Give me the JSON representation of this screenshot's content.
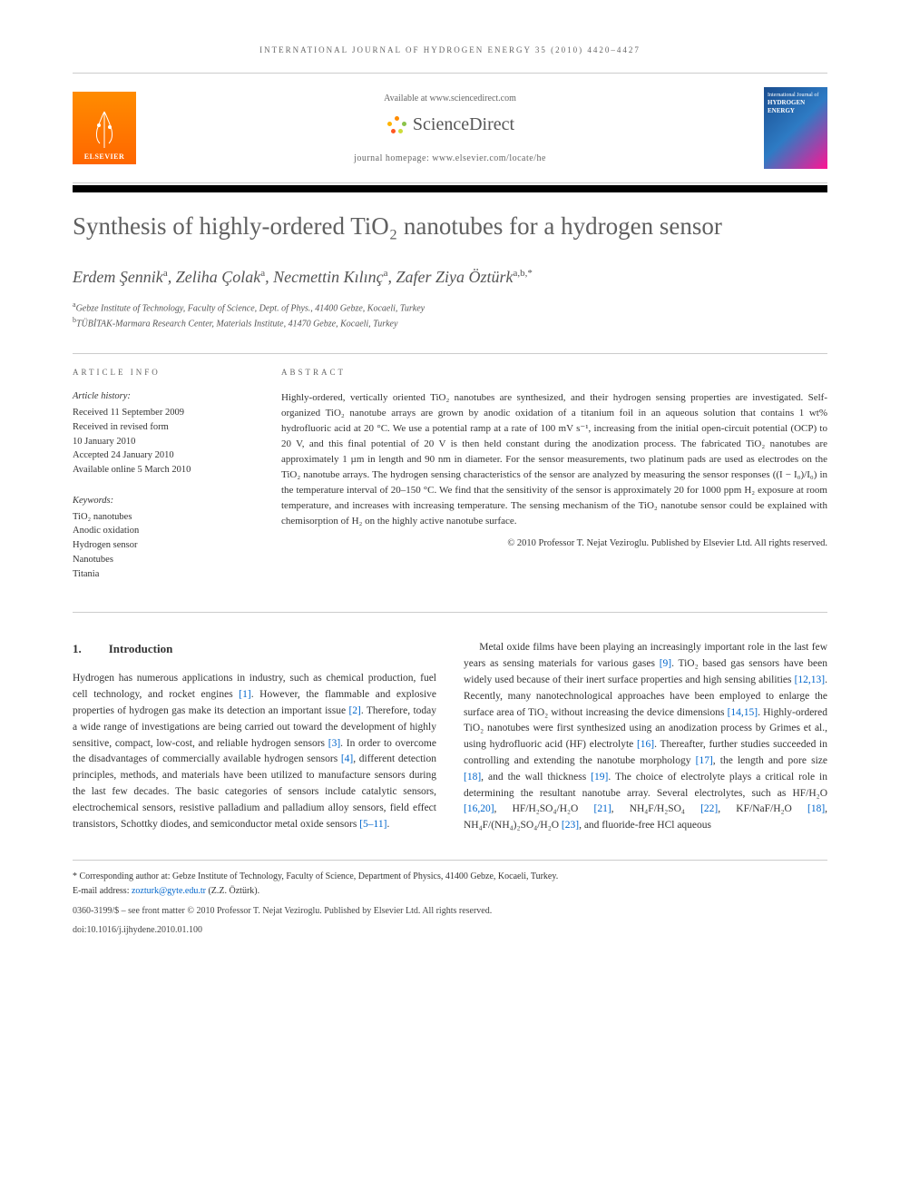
{
  "running_header": "INTERNATIONAL JOURNAL OF HYDROGEN ENERGY 35 (2010) 4420–4427",
  "header": {
    "available_at": "Available at www.sciencedirect.com",
    "sciencedirect": "ScienceDirect",
    "homepage_label": "journal homepage: ",
    "homepage_url": "www.elsevier.com/locate/he",
    "elsevier": "ELSEVIER",
    "cover_journal": "International Journal of",
    "cover_title": "HYDROGEN ENERGY"
  },
  "title": "Synthesis of highly-ordered TiO₂ nanotubes for a hydrogen sensor",
  "authors_html": "Erdem Şennik<sup>a</sup>, Zeliha Çolak<sup>a</sup>, Necmettin Kılınç<sup>a</sup>, Zafer Ziya Öztürk<sup>a,b,*</sup>",
  "affiliations": [
    {
      "sup": "a",
      "text": "Gebze Institute of Technology, Faculty of Science, Dept. of Phys., 41400 Gebze, Kocaeli, Turkey"
    },
    {
      "sup": "b",
      "text": "TÜBİTAK-Marmara Research Center, Materials Institute, 41470 Gebze, Kocaeli, Turkey"
    }
  ],
  "article_info": {
    "heading": "ARTICLE INFO",
    "history_label": "Article history:",
    "history": [
      "Received 11 September 2009",
      "Received in revised form",
      "10 January 2010",
      "Accepted 24 January 2010",
      "Available online 5 March 2010"
    ],
    "keywords_label": "Keywords:",
    "keywords": [
      "TiO₂ nanotubes",
      "Anodic oxidation",
      "Hydrogen sensor",
      "Nanotubes",
      "Titania"
    ]
  },
  "abstract": {
    "heading": "ABSTRACT",
    "text": "Highly-ordered, vertically oriented TiO₂ nanotubes are synthesized, and their hydrogen sensing properties are investigated. Self-organized TiO₂ nanotube arrays are grown by anodic oxidation of a titanium foil in an aqueous solution that contains 1 wt% hydrofluoric acid at 20 °C. We use a potential ramp at a rate of 100 mV s⁻¹, increasing from the initial open-circuit potential (OCP) to 20 V, and this final potential of 20 V is then held constant during the anodization process. The fabricated TiO₂ nanotubes are approximately 1 µm in length and 90 nm in diameter. For the sensor measurements, two platinum pads are used as electrodes on the TiO₂ nanotube arrays. The hydrogen sensing characteristics of the sensor are analyzed by measuring the sensor responses ((I − I₀)/I₀) in the temperature interval of 20–150 °C. We find that the sensitivity of the sensor is approximately 20 for 1000 ppm H₂ exposure at room temperature, and increases with increasing temperature. The sensing mechanism of the TiO₂ nanotube sensor could be explained with chemisorption of H₂ on the highly active nanotube surface.",
    "copyright": "© 2010 Professor T. Nejat Veziroglu. Published by Elsevier Ltd. All rights reserved."
  },
  "body": {
    "section_num": "1.",
    "section_title": "Introduction",
    "left_col": "Hydrogen has numerous applications in industry, such as chemical production, fuel cell technology, and rocket engines <span class='ref-link'>[1]</span>. However, the flammable and explosive properties of hydrogen gas make its detection an important issue <span class='ref-link'>[2]</span>. Therefore, today a wide range of investigations are being carried out toward the development of highly sensitive, compact, low-cost, and reliable hydrogen sensors <span class='ref-link'>[3]</span>. In order to overcome the disadvantages of commercially available hydrogen sensors <span class='ref-link'>[4]</span>, different detection principles, methods, and materials have been utilized to manufacture sensors during the last few decades. The basic categories of sensors include catalytic sensors, electrochemical sensors, resistive palladium and palladium alloy sensors, field effect transistors, Schottky diodes, and semiconductor metal oxide sensors <span class='ref-link'>[5–11]</span>.",
    "right_col": "Metal oxide films have been playing an increasingly important role in the last few years as sensing materials for various gases <span class='ref-link'>[9]</span>. TiO₂ based gas sensors have been widely used because of their inert surface properties and high sensing abilities <span class='ref-link'>[12,13]</span>. Recently, many nanotechnological approaches have been employed to enlarge the surface area of TiO₂ without increasing the device dimensions <span class='ref-link'>[14,15]</span>. Highly-ordered TiO₂ nanotubes were first synthesized using an anodization process by Grimes et al., using hydrofluoric acid (HF) electrolyte <span class='ref-link'>[16]</span>. Thereafter, further studies succeeded in controlling and extending the nanotube morphology <span class='ref-link'>[17]</span>, the length and pore size <span class='ref-link'>[18]</span>, and the wall thickness <span class='ref-link'>[19]</span>. The choice of electrolyte plays a critical role in determining the resultant nanotube array. Several electrolytes, such as HF/H₂O <span class='ref-link'>[16,20]</span>, HF/H₂SO₄/H₂O <span class='ref-link'>[21]</span>, NH₄F/H₂SO₄ <span class='ref-link'>[22]</span>, KF/NaF/H₂O <span class='ref-link'>[18]</span>, NH₄F/(NH₄)₂SO₄/H₂O <span class='ref-link'>[23]</span>, and fluoride-free HCl aqueous"
  },
  "footer": {
    "corresponding": "* Corresponding author at: Gebze Institute of Technology, Faculty of Science, Department of Physics, 41400 Gebze, Kocaeli, Turkey.",
    "email_label": "E-mail address: ",
    "email": "zozturk@gyte.edu.tr",
    "email_name": " (Z.Z. Öztürk).",
    "issn": "0360-3199/$ – see front matter © 2010 Professor T. Nejat Veziroglu. Published by Elsevier Ltd. All rights reserved.",
    "doi": "doi:10.1016/j.ijhydene.2010.01.100"
  },
  "colors": {
    "elsevier_orange": "#ff7700",
    "link_blue": "#0066cc",
    "title_grey": "#606060"
  }
}
